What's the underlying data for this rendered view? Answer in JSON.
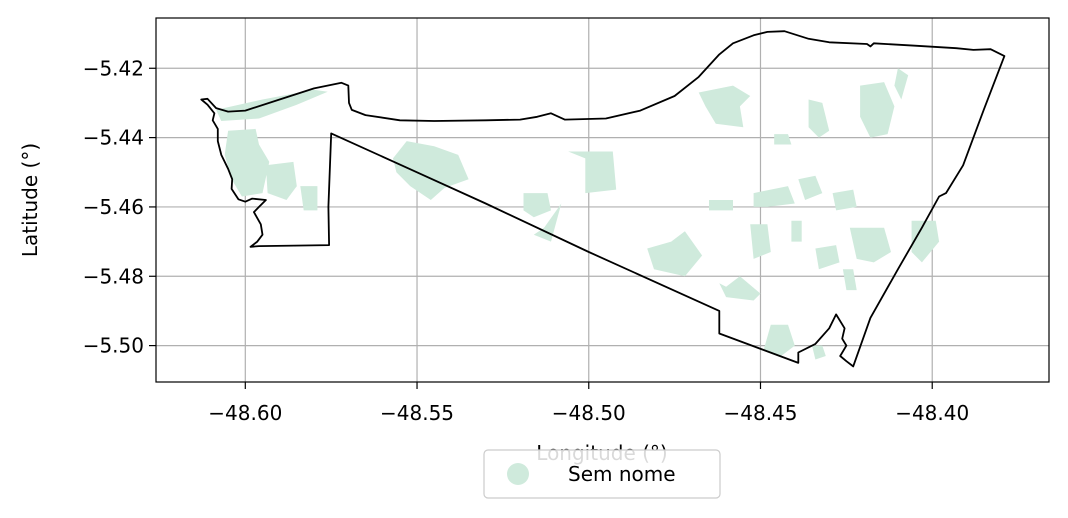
{
  "chart_data": {
    "type": "map",
    "xlabel": "Longitude (°)",
    "ylabel": "Latitude (°)",
    "xlim": [
      -48.626,
      -48.366
    ],
    "ylim": [
      -5.5105,
      -5.4055
    ],
    "grid": true,
    "xticks": [
      -48.6,
      -48.55,
      -48.5,
      -48.45,
      -48.4
    ],
    "xtick_labels": [
      "−48.60",
      "−48.55",
      "−48.50",
      "−48.45",
      "−48.40"
    ],
    "yticks": [
      -5.42,
      -5.44,
      -5.46,
      -5.48,
      -5.5
    ],
    "ytick_labels": [
      "−5.42",
      "−5.44",
      "−5.46",
      "−5.48",
      "−5.50"
    ],
    "legend": {
      "placement": "bottom-center",
      "entries": [
        {
          "label": "Sem nome",
          "color": "#cfeadc"
        }
      ]
    },
    "boundary_color": "#000000",
    "boundary": [
      [
        -48.6128,
        -5.429
      ],
      [
        -48.611,
        -5.4288
      ],
      [
        -48.6085,
        -5.4315
      ],
      [
        -48.605,
        -5.4325
      ],
      [
        -48.6,
        -5.4322
      ],
      [
        -48.59,
        -5.429
      ],
      [
        -48.58,
        -5.4258
      ],
      [
        -48.572,
        -5.4242
      ],
      [
        -48.57,
        -5.425
      ],
      [
        -48.5698,
        -5.43
      ],
      [
        -48.569,
        -5.432
      ],
      [
        -48.565,
        -5.4335
      ],
      [
        -48.555,
        -5.435
      ],
      [
        -48.545,
        -5.4352
      ],
      [
        -48.53,
        -5.435
      ],
      [
        -48.52,
        -5.4348
      ],
      [
        -48.515,
        -5.434
      ],
      [
        -48.511,
        -5.433
      ],
      [
        -48.507,
        -5.4348
      ],
      [
        -48.495,
        -5.4345
      ],
      [
        -48.485,
        -5.4322
      ],
      [
        -48.475,
        -5.428
      ],
      [
        -48.468,
        -5.4225
      ],
      [
        -48.462,
        -5.416
      ],
      [
        -48.458,
        -5.4128
      ],
      [
        -48.452,
        -5.4105
      ],
      [
        -48.448,
        -5.4095
      ],
      [
        -48.443,
        -5.4093
      ],
      [
        -48.436,
        -5.4115
      ],
      [
        -48.43,
        -5.4125
      ],
      [
        -48.419,
        -5.413
      ],
      [
        -48.418,
        -5.4137
      ],
      [
        -48.417,
        -5.4128
      ],
      [
        -48.405,
        -5.4135
      ],
      [
        -48.393,
        -5.4142
      ],
      [
        -48.388,
        -5.4147
      ],
      [
        -48.383,
        -5.4145
      ],
      [
        -48.379,
        -5.4165
      ],
      [
        -48.385,
        -5.432
      ],
      [
        -48.391,
        -5.448
      ],
      [
        -48.396,
        -5.456
      ],
      [
        -48.398,
        -5.457
      ],
      [
        -48.403,
        -5.466
      ],
      [
        -48.41,
        -5.478
      ],
      [
        -48.418,
        -5.492
      ],
      [
        -48.423,
        -5.506
      ],
      [
        -48.425,
        -5.5045
      ],
      [
        -48.4268,
        -5.503
      ],
      [
        -48.425,
        -5.5
      ],
      [
        -48.4262,
        -5.498
      ],
      [
        -48.4255,
        -5.495
      ],
      [
        -48.428,
        -5.491
      ],
      [
        -48.43,
        -5.495
      ],
      [
        -48.434,
        -5.4995
      ],
      [
        -48.439,
        -5.502
      ],
      [
        -48.439,
        -5.505
      ],
      [
        -48.462,
        -5.4965
      ],
      [
        -48.462,
        -5.49
      ],
      [
        -48.5,
        -5.473
      ],
      [
        -48.53,
        -5.459
      ],
      [
        -48.55,
        -5.45
      ],
      [
        -48.575,
        -5.4388
      ],
      [
        -48.5758,
        -5.46
      ],
      [
        -48.5756,
        -5.471
      ],
      [
        -48.596,
        -5.4713
      ],
      [
        -48.5985,
        -5.4715
      ],
      [
        -48.5965,
        -5.47
      ],
      [
        -48.595,
        -5.468
      ],
      [
        -48.5955,
        -5.465
      ],
      [
        -48.5975,
        -5.4615
      ],
      [
        -48.596,
        -5.46
      ],
      [
        -48.594,
        -5.458
      ],
      [
        -48.598,
        -5.4576
      ],
      [
        -48.6,
        -5.4585
      ],
      [
        -48.602,
        -5.4578
      ],
      [
        -48.604,
        -5.4548
      ],
      [
        -48.6038,
        -5.452
      ],
      [
        -48.605,
        -5.449
      ],
      [
        -48.607,
        -5.445
      ],
      [
        -48.608,
        -5.441
      ],
      [
        -48.608,
        -5.4375
      ],
      [
        -48.6095,
        -5.435
      ],
      [
        -48.609,
        -5.433
      ],
      [
        -48.611,
        -5.4305
      ],
      [
        -48.6128,
        -5.429
      ]
    ],
    "areas_color": "#cfeadc",
    "areas": [
      [
        [
          -48.6085,
          -5.432
        ],
        [
          -48.595,
          -5.429
        ],
        [
          -48.58,
          -5.4262
        ],
        [
          -48.576,
          -5.4268
        ],
        [
          -48.585,
          -5.4305
        ],
        [
          -48.596,
          -5.4345
        ],
        [
          -48.607,
          -5.4352
        ]
      ],
      [
        [
          -48.605,
          -5.438
        ],
        [
          -48.597,
          -5.4375
        ],
        [
          -48.596,
          -5.442
        ],
        [
          -48.593,
          -5.447
        ],
        [
          -48.595,
          -5.456
        ],
        [
          -48.601,
          -5.457
        ],
        [
          -48.604,
          -5.452
        ],
        [
          -48.606,
          -5.445
        ]
      ],
      [
        [
          -48.594,
          -5.448
        ],
        [
          -48.586,
          -5.447
        ],
        [
          -48.585,
          -5.454
        ],
        [
          -48.588,
          -5.458
        ],
        [
          -48.5935,
          -5.456
        ]
      ],
      [
        [
          -48.584,
          -5.454
        ],
        [
          -48.579,
          -5.454
        ],
        [
          -48.579,
          -5.461
        ],
        [
          -48.583,
          -5.461
        ]
      ],
      [
        [
          -48.553,
          -5.441
        ],
        [
          -48.545,
          -5.4425
        ],
        [
          -48.538,
          -5.445
        ],
        [
          -48.535,
          -5.452
        ],
        [
          -48.542,
          -5.4545
        ],
        [
          -48.546,
          -5.458
        ],
        [
          -48.552,
          -5.454
        ],
        [
          -48.556,
          -5.45
        ],
        [
          -48.557,
          -5.446
        ]
      ],
      [
        [
          -48.519,
          -5.456
        ],
        [
          -48.512,
          -5.456
        ],
        [
          -48.511,
          -5.461
        ],
        [
          -48.516,
          -5.463
        ],
        [
          -48.519,
          -5.461
        ]
      ],
      [
        [
          -48.508,
          -5.459
        ],
        [
          -48.513,
          -5.466
        ],
        [
          -48.516,
          -5.468
        ],
        [
          -48.511,
          -5.47
        ]
      ],
      [
        [
          -48.501,
          -5.446
        ],
        [
          -48.506,
          -5.444
        ],
        [
          -48.493,
          -5.444
        ],
        [
          -48.492,
          -5.455
        ],
        [
          -48.501,
          -5.456
        ]
      ],
      [
        [
          -48.476,
          -5.47
        ],
        [
          -48.483,
          -5.472
        ],
        [
          -48.481,
          -5.478
        ],
        [
          -48.472,
          -5.48
        ],
        [
          -48.467,
          -5.474
        ],
        [
          -48.472,
          -5.467
        ]
      ],
      [
        [
          -48.453,
          -5.465
        ],
        [
          -48.448,
          -5.465
        ],
        [
          -48.447,
          -5.473
        ],
        [
          -48.452,
          -5.475
        ]
      ],
      [
        [
          -48.462,
          -5.482
        ],
        [
          -48.46,
          -5.483
        ],
        [
          -48.456,
          -5.48
        ],
        [
          -48.45,
          -5.485
        ],
        [
          -48.452,
          -5.487
        ],
        [
          -48.46,
          -5.486
        ]
      ],
      [
        [
          -48.465,
          -5.458
        ],
        [
          -48.458,
          -5.458
        ],
        [
          -48.458,
          -5.461
        ],
        [
          -48.465,
          -5.461
        ]
      ],
      [
        [
          -48.452,
          -5.456
        ],
        [
          -48.442,
          -5.454
        ],
        [
          -48.44,
          -5.459
        ],
        [
          -48.448,
          -5.46
        ],
        [
          -48.452,
          -5.46
        ]
      ],
      [
        [
          -48.468,
          -5.427
        ],
        [
          -48.458,
          -5.425
        ],
        [
          -48.453,
          -5.428
        ],
        [
          -48.456,
          -5.431
        ],
        [
          -48.455,
          -5.437
        ],
        [
          -48.463,
          -5.436
        ],
        [
          -48.466,
          -5.431
        ]
      ],
      [
        [
          -48.446,
          -5.439
        ],
        [
          -48.442,
          -5.439
        ],
        [
          -48.441,
          -5.442
        ],
        [
          -48.446,
          -5.442
        ]
      ],
      [
        [
          -48.436,
          -5.429
        ],
        [
          -48.432,
          -5.43
        ],
        [
          -48.43,
          -5.438
        ],
        [
          -48.433,
          -5.44
        ],
        [
          -48.436,
          -5.437
        ]
      ],
      [
        [
          -48.421,
          -5.425
        ],
        [
          -48.414,
          -5.424
        ],
        [
          -48.411,
          -5.431
        ],
        [
          -48.413,
          -5.439
        ],
        [
          -48.418,
          -5.44
        ],
        [
          -48.421,
          -5.434
        ]
      ],
      [
        [
          -48.41,
          -5.42
        ],
        [
          -48.407,
          -5.422
        ],
        [
          -48.409,
          -5.429
        ],
        [
          -48.411,
          -5.425
        ]
      ],
      [
        [
          -48.439,
          -5.452
        ],
        [
          -48.434,
          -5.451
        ],
        [
          -48.432,
          -5.456
        ],
        [
          -48.437,
          -5.458
        ]
      ],
      [
        [
          -48.429,
          -5.456
        ],
        [
          -48.423,
          -5.455
        ],
        [
          -48.422,
          -5.46
        ],
        [
          -48.428,
          -5.461
        ]
      ],
      [
        [
          -48.441,
          -5.464
        ],
        [
          -48.438,
          -5.464
        ],
        [
          -48.438,
          -5.47
        ],
        [
          -48.441,
          -5.47
        ]
      ],
      [
        [
          -48.434,
          -5.472
        ],
        [
          -48.428,
          -5.471
        ],
        [
          -48.427,
          -5.476
        ],
        [
          -48.433,
          -5.478
        ]
      ],
      [
        [
          -48.424,
          -5.466
        ],
        [
          -48.414,
          -5.466
        ],
        [
          -48.412,
          -5.473
        ],
        [
          -48.417,
          -5.476
        ],
        [
          -48.422,
          -5.475
        ]
      ],
      [
        [
          -48.406,
          -5.464
        ],
        [
          -48.399,
          -5.464
        ],
        [
          -48.398,
          -5.47
        ],
        [
          -48.403,
          -5.476
        ],
        [
          -48.406,
          -5.473
        ]
      ],
      [
        [
          -48.426,
          -5.478
        ],
        [
          -48.423,
          -5.478
        ],
        [
          -48.422,
          -5.484
        ],
        [
          -48.425,
          -5.484
        ]
      ],
      [
        [
          -48.447,
          -5.494
        ],
        [
          -48.442,
          -5.494
        ],
        [
          -48.44,
          -5.5
        ],
        [
          -48.444,
          -5.503
        ],
        [
          -48.449,
          -5.501
        ]
      ],
      [
        [
          -48.435,
          -5.5
        ],
        [
          -48.432,
          -5.5
        ],
        [
          -48.431,
          -5.503
        ],
        [
          -48.434,
          -5.504
        ]
      ]
    ]
  }
}
